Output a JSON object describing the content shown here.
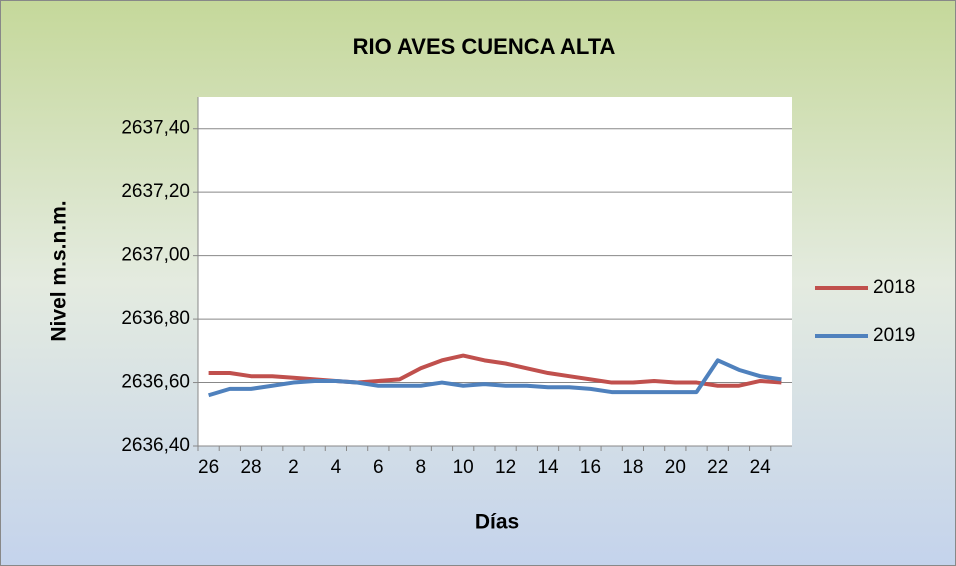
{
  "chart_data": {
    "type": "line",
    "title": "RIO AVES CUENCA  ALTA",
    "x_label": "Días",
    "y_label": "Nivel m.s.n.m.",
    "categories": [
      "26",
      null,
      "28",
      null,
      "2",
      null,
      "4",
      null,
      "6",
      null,
      "8",
      null,
      "10",
      null,
      "12",
      null,
      "14",
      null,
      "16",
      null,
      "18",
      null,
      "20",
      null,
      "22",
      null,
      "24",
      null
    ],
    "series": [
      {
        "name": "2018",
        "color": "#c0504d",
        "values": [
          2636.63,
          2636.63,
          2636.62,
          2636.62,
          2636.615,
          2636.61,
          2636.605,
          2636.6,
          2636.605,
          2636.61,
          2636.645,
          2636.67,
          2636.685,
          2636.67,
          2636.66,
          2636.645,
          2636.63,
          2636.62,
          2636.61,
          2636.6,
          2636.6,
          2636.605,
          2636.6,
          2636.6,
          2636.59,
          2636.59,
          2636.605,
          2636.6
        ]
      },
      {
        "name": "2019",
        "color": "#4f81bd",
        "values": [
          2636.56,
          2636.58,
          2636.58,
          2636.59,
          2636.6,
          2636.605,
          2636.605,
          2636.6,
          2636.59,
          2636.59,
          2636.59,
          2636.6,
          2636.59,
          2636.595,
          2636.59,
          2636.59,
          2636.585,
          2636.585,
          2636.58,
          2636.57,
          2636.57,
          2636.57,
          2636.57,
          2636.57,
          2636.67,
          2636.64,
          2636.62,
          2636.61
        ]
      }
    ],
    "ylim": [
      2636.4,
      2637.5
    ],
    "yticks": [
      {
        "value": 2636.4,
        "label": "2636,40"
      },
      {
        "value": 2636.6,
        "label": "2636,60"
      },
      {
        "value": 2636.8,
        "label": "2636,80"
      },
      {
        "value": 2637.0,
        "label": "2637,00"
      },
      {
        "value": 2637.2,
        "label": "2637,20"
      },
      {
        "value": 2637.4,
        "label": "2637,40"
      }
    ],
    "grid": true,
    "legend": "right"
  }
}
